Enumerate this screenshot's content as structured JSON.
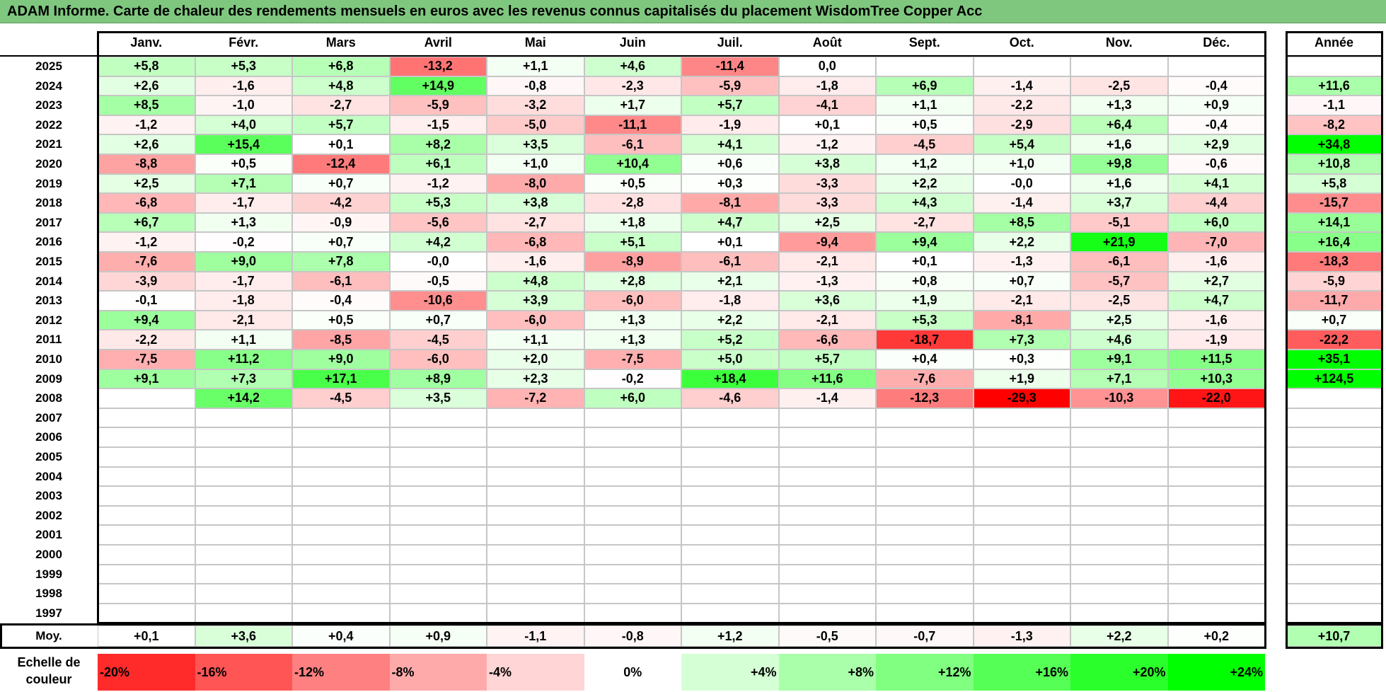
{
  "title": "ADAM Informe. Carte de chaleur des rendements mensuels en euros avec les revenus connus capitalisés du placement WisdomTree Copper Acc",
  "chart_data": {
    "type": "heatmap",
    "months": [
      "Janv.",
      "Févr.",
      "Mars",
      "Avril",
      "Mai",
      "Juin",
      "Juil.",
      "Août",
      "Sept.",
      "Oct.",
      "Nov.",
      "Déc."
    ],
    "year_header": "Année",
    "rows": [
      {
        "year": "2025",
        "values": [
          "+5,8",
          "+5,3",
          "+6,8",
          "-13,2",
          "+1,1",
          "+4,6",
          "-11,4",
          "0,0",
          "",
          "",
          "",
          ""
        ],
        "annual": ""
      },
      {
        "year": "2024",
        "values": [
          "+2,6",
          "-1,6",
          "+4,8",
          "+14,9",
          "-0,8",
          "-2,3",
          "-5,9",
          "-1,8",
          "+6,9",
          "-1,4",
          "-2,5",
          "-0,4"
        ],
        "annual": "+11,6"
      },
      {
        "year": "2023",
        "values": [
          "+8,5",
          "-1,0",
          "-2,7",
          "-5,9",
          "-3,2",
          "+1,7",
          "+5,7",
          "-4,1",
          "+1,1",
          "-2,2",
          "+1,3",
          "+0,9"
        ],
        "annual": "-1,1"
      },
      {
        "year": "2022",
        "values": [
          "-1,2",
          "+4,0",
          "+5,7",
          "-1,5",
          "-5,0",
          "-11,1",
          "-1,9",
          "+0,1",
          "+0,5",
          "-2,9",
          "+6,4",
          "-0,4"
        ],
        "annual": "-8,2"
      },
      {
        "year": "2021",
        "values": [
          "+2,6",
          "+15,4",
          "+0,1",
          "+8,2",
          "+3,5",
          "-6,1",
          "+4,1",
          "-1,2",
          "-4,5",
          "+5,4",
          "+1,6",
          "+2,9"
        ],
        "annual": "+34,8"
      },
      {
        "year": "2020",
        "values": [
          "-8,8",
          "+0,5",
          "-12,4",
          "+6,1",
          "+1,0",
          "+10,4",
          "+0,6",
          "+3,8",
          "+1,2",
          "+1,0",
          "+9,8",
          "-0,6"
        ],
        "annual": "+10,8"
      },
      {
        "year": "2019",
        "values": [
          "+2,5",
          "+7,1",
          "+0,7",
          "-1,2",
          "-8,0",
          "+0,5",
          "+0,3",
          "-3,3",
          "+2,2",
          "-0,0",
          "+1,6",
          "+4,1"
        ],
        "annual": "+5,8"
      },
      {
        "year": "2018",
        "values": [
          "-6,8",
          "-1,7",
          "-4,2",
          "+5,3",
          "+3,8",
          "-2,8",
          "-8,1",
          "-3,3",
          "+4,3",
          "-1,4",
          "+3,7",
          "-4,4"
        ],
        "annual": "-15,7"
      },
      {
        "year": "2017",
        "values": [
          "+6,7",
          "+1,3",
          "-0,9",
          "-5,6",
          "-2,7",
          "+1,8",
          "+4,7",
          "+2,5",
          "-2,7",
          "+8,5",
          "-5,1",
          "+6,0"
        ],
        "annual": "+14,1"
      },
      {
        "year": "2016",
        "values": [
          "-1,2",
          "-0,2",
          "+0,7",
          "+4,2",
          "-6,8",
          "+5,1",
          "+0,1",
          "-9,4",
          "+9,4",
          "+2,2",
          "+21,9",
          "-7,0"
        ],
        "annual": "+16,4"
      },
      {
        "year": "2015",
        "values": [
          "-7,6",
          "+9,0",
          "+7,8",
          "-0,0",
          "-1,6",
          "-8,9",
          "-6,1",
          "-2,1",
          "+0,1",
          "-1,3",
          "-6,1",
          "-1,6"
        ],
        "annual": "-18,3"
      },
      {
        "year": "2014",
        "values": [
          "-3,9",
          "-1,7",
          "-6,1",
          "-0,5",
          "+4,8",
          "+2,8",
          "+2,1",
          "-1,3",
          "+0,8",
          "+0,7",
          "-5,7",
          "+2,7"
        ],
        "annual": "-5,9"
      },
      {
        "year": "2013",
        "values": [
          "-0,1",
          "-1,8",
          "-0,4",
          "-10,6",
          "+3,9",
          "-6,0",
          "-1,8",
          "+3,6",
          "+1,9",
          "-2,1",
          "-2,5",
          "+4,7"
        ],
        "annual": "-11,7"
      },
      {
        "year": "2012",
        "values": [
          "+9,4",
          "-2,1",
          "+0,5",
          "+0,7",
          "-6,0",
          "+1,3",
          "+2,2",
          "-2,1",
          "+5,3",
          "-8,1",
          "+2,5",
          "-1,6"
        ],
        "annual": "+0,7"
      },
      {
        "year": "2011",
        "values": [
          "-2,2",
          "+1,1",
          "-8,5",
          "-4,5",
          "+1,1",
          "+1,3",
          "+5,2",
          "-6,6",
          "-18,7",
          "+7,3",
          "+4,6",
          "-1,9"
        ],
        "annual": "-22,2"
      },
      {
        "year": "2010",
        "values": [
          "-7,5",
          "+11,2",
          "+9,0",
          "-6,0",
          "+2,0",
          "-7,5",
          "+5,0",
          "+5,7",
          "+0,4",
          "+0,3",
          "+9,1",
          "+11,5"
        ],
        "annual": "+35,1"
      },
      {
        "year": "2009",
        "values": [
          "+9,1",
          "+7,3",
          "+17,1",
          "+8,9",
          "+2,3",
          "-0,2",
          "+18,4",
          "+11,6",
          "-7,6",
          "+1,9",
          "+7,1",
          "+10,3"
        ],
        "annual": "+124,5"
      },
      {
        "year": "2008",
        "values": [
          "",
          "+14,2",
          "-4,5",
          "+3,5",
          "-7,2",
          "+6,0",
          "-4,6",
          "-1,4",
          "-12,3",
          "-29,3",
          "-10,3",
          "-22,0"
        ],
        "annual": ""
      },
      {
        "year": "2007",
        "values": [
          "",
          "",
          "",
          "",
          "",
          "",
          "",
          "",
          "",
          "",
          "",
          ""
        ],
        "annual": ""
      },
      {
        "year": "2006",
        "values": [
          "",
          "",
          "",
          "",
          "",
          "",
          "",
          "",
          "",
          "",
          "",
          ""
        ],
        "annual": ""
      },
      {
        "year": "2005",
        "values": [
          "",
          "",
          "",
          "",
          "",
          "",
          "",
          "",
          "",
          "",
          "",
          ""
        ],
        "annual": ""
      },
      {
        "year": "2004",
        "values": [
          "",
          "",
          "",
          "",
          "",
          "",
          "",
          "",
          "",
          "",
          "",
          ""
        ],
        "annual": ""
      },
      {
        "year": "2003",
        "values": [
          "",
          "",
          "",
          "",
          "",
          "",
          "",
          "",
          "",
          "",
          "",
          ""
        ],
        "annual": ""
      },
      {
        "year": "2002",
        "values": [
          "",
          "",
          "",
          "",
          "",
          "",
          "",
          "",
          "",
          "",
          "",
          ""
        ],
        "annual": ""
      },
      {
        "year": "2001",
        "values": [
          "",
          "",
          "",
          "",
          "",
          "",
          "",
          "",
          "",
          "",
          "",
          ""
        ],
        "annual": ""
      },
      {
        "year": "2000",
        "values": [
          "",
          "",
          "",
          "",
          "",
          "",
          "",
          "",
          "",
          "",
          "",
          ""
        ],
        "annual": ""
      },
      {
        "year": "1999",
        "values": [
          "",
          "",
          "",
          "",
          "",
          "",
          "",
          "",
          "",
          "",
          "",
          ""
        ],
        "annual": ""
      },
      {
        "year": "1998",
        "values": [
          "",
          "",
          "",
          "",
          "",
          "",
          "",
          "",
          "",
          "",
          "",
          ""
        ],
        "annual": ""
      },
      {
        "year": "1997",
        "values": [
          "",
          "",
          "",
          "",
          "",
          "",
          "",
          "",
          "",
          "",
          "",
          ""
        ],
        "annual": ""
      }
    ],
    "average": {
      "label": "Moy.",
      "values": [
        "+0,1",
        "+3,6",
        "+0,4",
        "+0,9",
        "-1,1",
        "-0,8",
        "+1,2",
        "-0,5",
        "-0,7",
        "-1,3",
        "+2,2",
        "+0,2"
      ],
      "annual": "+10,7"
    },
    "color_scale": {
      "label": "Echelle de couleur",
      "stops": [
        "-20%",
        "-16%",
        "-12%",
        "-8%",
        "-4%",
        "0%",
        "+4%",
        "+8%",
        "+12%",
        "+16%",
        "+20%",
        "+24%"
      ],
      "negative_color": "#ff0000",
      "neutral_color": "#ffffff",
      "positive_color": "#00ff00"
    }
  }
}
